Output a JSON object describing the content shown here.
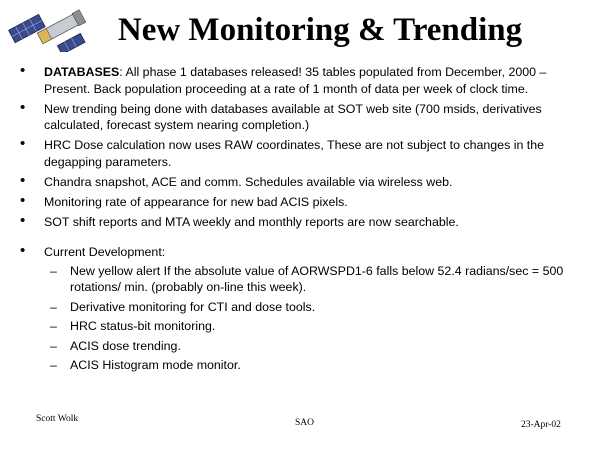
{
  "title": "New Monitoring & Trending",
  "bullets": [
    {
      "lead": "DATABASES",
      "text": ":  All phase 1 databases released!  35 tables populated from December, 2000 – Present. Back population proceeding at a rate of 1 month of data per week of clock time."
    },
    {
      "text": "New trending being done with databases available at SOT web site (700 msids, derivatives calculated, forecast system nearing completion.)"
    },
    {
      "text": "HRC Dose calculation now uses RAW coordinates, These are not subject to changes in the degapping parameters."
    },
    {
      "text": "Chandra snapshot, ACE and comm. Schedules available via wireless web."
    },
    {
      "text": "Monitoring rate of appearance for new bad ACIS pixels."
    },
    {
      "text": "SOT shift reports and MTA weekly and monthly reports are now searchable."
    }
  ],
  "current": {
    "label": "Current Development:",
    "items": [
      "New yellow alert If the absolute value of AORWSPD1-6 falls below 52.4 radians/sec = 500 rotations/ min. (probably on-line this week).",
      "Derivative monitoring for CTI and dose tools.",
      "HRC status-bit monitoring.",
      "ACIS dose trending.",
      "ACIS Histogram mode monitor."
    ]
  },
  "footer": {
    "author": "Scott Wolk",
    "org": "SAO",
    "date": "23-Apr-02"
  },
  "icons": {
    "logo": "chandra-satellite-icon"
  }
}
